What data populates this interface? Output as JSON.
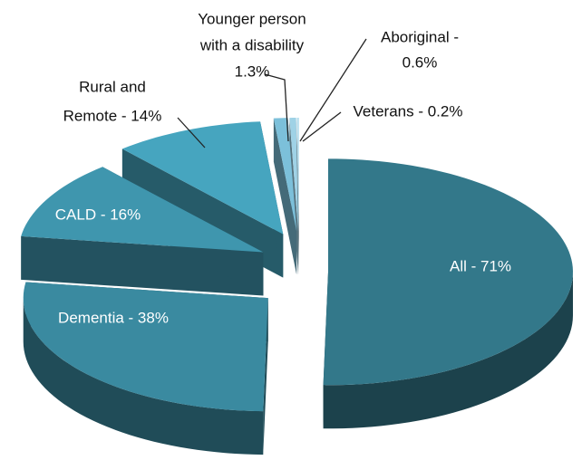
{
  "chart_data": {
    "type": "pie",
    "values": [
      71,
      38,
      16,
      14,
      1.3,
      0.6,
      0.2
    ],
    "value_labels": [
      [
        "All - 71%"
      ],
      [
        "Dementia - 38%"
      ],
      [
        "CALD - 16%"
      ],
      [
        "Rural and",
        "Remote - 14%"
      ],
      [
        "Younger person",
        "with a disability",
        "1.3%"
      ],
      [
        "Aboriginal -",
        "0.6%"
      ],
      [
        "Veterans - 0.2%"
      ]
    ],
    "colors": [
      "#33788a",
      "#3a8aa0",
      "#3f96ae",
      "#46a5bf",
      "#7cc0da",
      "#9fd2e6",
      "#b8dfee"
    ]
  }
}
